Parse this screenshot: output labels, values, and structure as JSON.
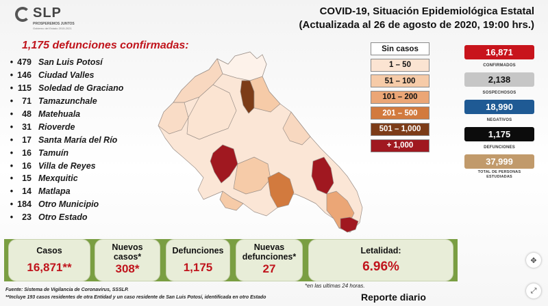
{
  "header": {
    "logo_name": "SLP",
    "logo_tagline": "PROSPEREMOS JUNTOS",
    "logo_sub": "Gobierno del Estado 2015-2021",
    "title_line1": "COVID-19, Situación Epidemiológica Estatal",
    "title_line2": "(Actualizada al 26 de agosto de 2020, 19:00 hrs.)"
  },
  "deaths_heading": "1,175 defunciones confirmadas:",
  "municipalities": [
    {
      "count": "479",
      "name": "San Luis Potosí"
    },
    {
      "count": "146",
      "name": "Ciudad Valles"
    },
    {
      "count": "115",
      "name": "Soledad de Graciano"
    },
    {
      "count": "71",
      "name": "Tamazunchale"
    },
    {
      "count": "48",
      "name": "Matehuala"
    },
    {
      "count": "31",
      "name": "Rioverde"
    },
    {
      "count": "17",
      "name": "Santa María del Río"
    },
    {
      "count": "16",
      "name": "Tamuín"
    },
    {
      "count": "16",
      "name": "Villa de Reyes"
    },
    {
      "count": "15",
      "name": "Mexquitic"
    },
    {
      "count": "14",
      "name": "Matlapa"
    },
    {
      "count": "184",
      "name": "Otro Municipio"
    },
    {
      "count": "23",
      "name": "Otro Estado"
    }
  ],
  "legend": [
    {
      "label": "Sin casos",
      "color": "#ffffff",
      "text_color": "#111111"
    },
    {
      "label": "1 – 50",
      "color": "#fbe4d2",
      "text_color": "#111111"
    },
    {
      "label": "51 – 100",
      "color": "#f6cba8",
      "text_color": "#111111"
    },
    {
      "label": "101 – 200",
      "color": "#eba676",
      "text_color": "#111111"
    },
    {
      "label": "201 – 500",
      "color": "#d27a3e",
      "text_color": "#ffffff"
    },
    {
      "label": "501 – 1,000",
      "color": "#7c3c18",
      "text_color": "#ffffff"
    },
    {
      "label": "+ 1,000",
      "color": "#a01820",
      "text_color": "#ffffff"
    }
  ],
  "stats": [
    {
      "value": "16,871",
      "label": "CONFIRMADOS",
      "bg": "#c8141c",
      "fg": "#ffffff"
    },
    {
      "value": "2,138",
      "label": "SOSPECHOSOS",
      "bg": "#c6c6c6",
      "fg": "#111111"
    },
    {
      "value": "18,990",
      "label": "NEGATIVOS",
      "bg": "#1f5a94",
      "fg": "#ffffff"
    },
    {
      "value": "1,175",
      "label": "DEFUNCIONES",
      "bg": "#0c0c0c",
      "fg": "#ffffff"
    },
    {
      "value": "37,999",
      "label": "TOTAL DE PERSONAS ESTUDIADAS",
      "bg": "#c19a6b",
      "fg": "#ffffff"
    }
  ],
  "summary": {
    "casos_label": "Casos",
    "casos_value": "16,871**",
    "nuevos_casos_label": "Nuevos casos*",
    "nuevos_casos_value": "308*",
    "defunciones_label": "Defunciones",
    "defunciones_value": "1,175",
    "nuevas_defunciones_label": "Nuevas defunciones*",
    "nuevas_defunciones_value": "27",
    "letalidad_label": "Letalidad:",
    "letalidad_value": "6.96%"
  },
  "footer": {
    "note_24h": "*en las ultimas 24 horas.",
    "source": "Fuente: Sistema de Vigilancia de Coronavirus, SSSLP.",
    "note_extra": "**Incluye 193 casos residentes de otra Entidad y un caso residente de San Luis Potosí, identificada en otro Estado",
    "reporte": "Reporte diario"
  },
  "colors": {
    "accent_red": "#c0141c",
    "band_green": "#7a9e42",
    "card_bg": "#e8edd8"
  },
  "icons": [
    "move-icon",
    "expand-icon"
  ]
}
